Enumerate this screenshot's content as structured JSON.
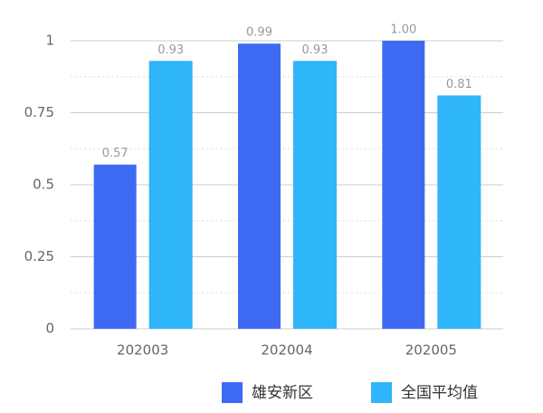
{
  "chart_data": {
    "type": "bar",
    "categories": [
      "202003",
      "202004",
      "202005"
    ],
    "series": [
      {
        "name": "雄安新区",
        "color": "#3d6af2",
        "values": [
          0.57,
          0.99,
          1.0
        ],
        "value_labels": [
          "0.57",
          "0.99",
          "1.00"
        ]
      },
      {
        "name": "全国平均值",
        "color": "#2fb5fa",
        "values": [
          0.93,
          0.93,
          0.81
        ]
      }
    ],
    "ylim": [
      0,
      1
    ],
    "yticks": [
      0,
      0.25,
      0.5,
      0.75,
      1
    ],
    "minor_yticks": [
      0.125,
      0.375,
      0.625,
      0.875
    ],
    "grid": true,
    "legend": "bottom"
  }
}
